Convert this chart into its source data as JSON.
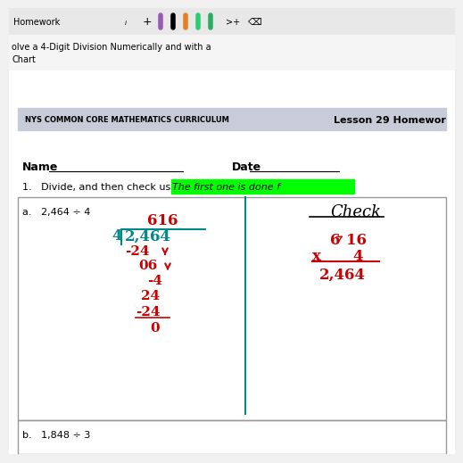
{
  "bg_color": "#f0f0f0",
  "toolbar_bg": "#e8e8e8",
  "toolbar_text": "Homework",
  "title_line1": "olve a 4-Digit Division Numerically and with a",
  "title_line2": "Chart",
  "header_bg": "#c8ccd8",
  "header_left": "NYS COMMON CORE MATHEMATICS CURRICULUM",
  "header_right": "Lesson 29 Homewor",
  "name_label": "Name",
  "date_label": "Date",
  "instruction": "1.   Divide, and then check using multiplication.",
  "highlight_text": "The first one is done f",
  "highlight_color": "#00ff00",
  "problem_a": "a.   2,464 ÷ 4",
  "problem_b": "b.   1,848 ÷ 3",
  "check_label": "Check",
  "paper_color": "#ffffff",
  "divwork_color": "#cc0000",
  "divisor_color": "#008888",
  "answer_color": "#cc0000"
}
